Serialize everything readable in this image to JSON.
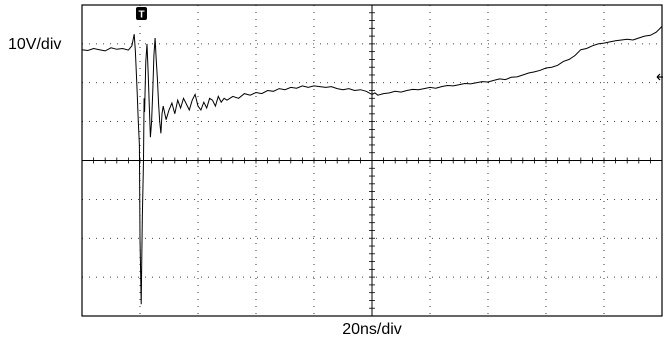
{
  "chart_data": {
    "type": "line",
    "title": "",
    "ylabel": "10V/div",
    "xlabel": "20ns/div",
    "xlim": [
      0,
      10
    ],
    "ylim": [
      -4,
      4
    ],
    "grid": true,
    "trigger_marker": "T",
    "series": [
      {
        "points": [
          [
            0.0,
            2.85
          ],
          [
            0.1,
            2.83
          ],
          [
            0.2,
            2.88
          ],
          [
            0.3,
            2.85
          ],
          [
            0.4,
            2.82
          ],
          [
            0.5,
            2.9
          ],
          [
            0.6,
            2.86
          ],
          [
            0.7,
            2.88
          ],
          [
            0.8,
            2.84
          ],
          [
            0.86,
            2.95
          ],
          [
            0.9,
            3.25
          ],
          [
            0.92,
            2.8
          ],
          [
            0.95,
            1.8
          ],
          [
            0.97,
            1.0
          ],
          [
            0.99,
            0.4
          ],
          [
            1.0,
            -2.0
          ],
          [
            1.02,
            -3.7
          ],
          [
            1.04,
            -1.5
          ],
          [
            1.06,
            0.0
          ],
          [
            1.07,
            1.6
          ],
          [
            1.08,
            1.25
          ],
          [
            1.1,
            2.55
          ],
          [
            1.12,
            3.0
          ],
          [
            1.14,
            2.3
          ],
          [
            1.16,
            1.4
          ],
          [
            1.18,
            0.6
          ],
          [
            1.2,
            1.0
          ],
          [
            1.22,
            1.8
          ],
          [
            1.24,
            2.7
          ],
          [
            1.26,
            3.15
          ],
          [
            1.28,
            2.6
          ],
          [
            1.3,
            2.1
          ],
          [
            1.32,
            1.45
          ],
          [
            1.34,
            1.0
          ],
          [
            1.36,
            0.7
          ],
          [
            1.38,
            1.2
          ],
          [
            1.4,
            1.4
          ],
          [
            1.45,
            1.05
          ],
          [
            1.5,
            1.3
          ],
          [
            1.55,
            1.48
          ],
          [
            1.6,
            1.2
          ],
          [
            1.65,
            1.55
          ],
          [
            1.7,
            1.35
          ],
          [
            1.75,
            1.6
          ],
          [
            1.8,
            1.45
          ],
          [
            1.85,
            1.3
          ],
          [
            1.9,
            1.55
          ],
          [
            1.95,
            1.7
          ],
          [
            2.0,
            1.4
          ],
          [
            2.05,
            1.3
          ],
          [
            2.1,
            1.5
          ],
          [
            2.15,
            1.35
          ],
          [
            2.2,
            1.6
          ],
          [
            2.25,
            1.55
          ],
          [
            2.3,
            1.4
          ],
          [
            2.35,
            1.65
          ],
          [
            2.4,
            1.5
          ],
          [
            2.45,
            1.6
          ],
          [
            2.5,
            1.55
          ],
          [
            2.6,
            1.65
          ],
          [
            2.7,
            1.6
          ],
          [
            2.8,
            1.72
          ],
          [
            2.9,
            1.68
          ],
          [
            3.0,
            1.75
          ],
          [
            3.1,
            1.72
          ],
          [
            3.2,
            1.8
          ],
          [
            3.3,
            1.78
          ],
          [
            3.4,
            1.85
          ],
          [
            3.5,
            1.82
          ],
          [
            3.6,
            1.88
          ],
          [
            3.7,
            1.86
          ],
          [
            3.8,
            1.92
          ],
          [
            3.9,
            1.88
          ],
          [
            4.0,
            1.92
          ],
          [
            4.1,
            1.9
          ],
          [
            4.2,
            1.88
          ],
          [
            4.3,
            1.9
          ],
          [
            4.4,
            1.85
          ],
          [
            4.5,
            1.82
          ],
          [
            4.6,
            1.85
          ],
          [
            4.7,
            1.8
          ],
          [
            4.8,
            1.82
          ],
          [
            4.9,
            1.78
          ],
          [
            5.0,
            1.7
          ],
          [
            5.05,
            1.74
          ],
          [
            5.1,
            1.68
          ],
          [
            5.2,
            1.72
          ],
          [
            5.3,
            1.74
          ],
          [
            5.4,
            1.78
          ],
          [
            5.5,
            1.76
          ],
          [
            5.6,
            1.8
          ],
          [
            5.7,
            1.83
          ],
          [
            5.8,
            1.82
          ],
          [
            5.9,
            1.85
          ],
          [
            6.0,
            1.88
          ],
          [
            6.1,
            1.86
          ],
          [
            6.2,
            1.9
          ],
          [
            6.3,
            1.93
          ],
          [
            6.4,
            1.92
          ],
          [
            6.5,
            1.95
          ],
          [
            6.6,
            1.98
          ],
          [
            6.7,
            1.97
          ],
          [
            6.8,
            2.0
          ],
          [
            6.9,
            2.03
          ],
          [
            7.0,
            2.02
          ],
          [
            7.1,
            2.06
          ],
          [
            7.2,
            2.1
          ],
          [
            7.3,
            2.08
          ],
          [
            7.4,
            2.14
          ],
          [
            7.5,
            2.15
          ],
          [
            7.6,
            2.2
          ],
          [
            7.7,
            2.25
          ],
          [
            7.8,
            2.28
          ],
          [
            7.9,
            2.32
          ],
          [
            8.0,
            2.38
          ],
          [
            8.1,
            2.4
          ],
          [
            8.2,
            2.45
          ],
          [
            8.3,
            2.55
          ],
          [
            8.4,
            2.6
          ],
          [
            8.5,
            2.7
          ],
          [
            8.6,
            2.85
          ],
          [
            8.7,
            2.88
          ],
          [
            8.8,
            2.95
          ],
          [
            8.9,
            3.0
          ],
          [
            9.0,
            3.02
          ],
          [
            9.1,
            3.05
          ],
          [
            9.2,
            3.08
          ],
          [
            9.3,
            3.1
          ],
          [
            9.4,
            3.12
          ],
          [
            9.5,
            3.1
          ],
          [
            9.6,
            3.15
          ],
          [
            9.7,
            3.2
          ],
          [
            9.8,
            3.22
          ],
          [
            9.9,
            3.3
          ],
          [
            10.0,
            3.45
          ]
        ]
      }
    ]
  }
}
